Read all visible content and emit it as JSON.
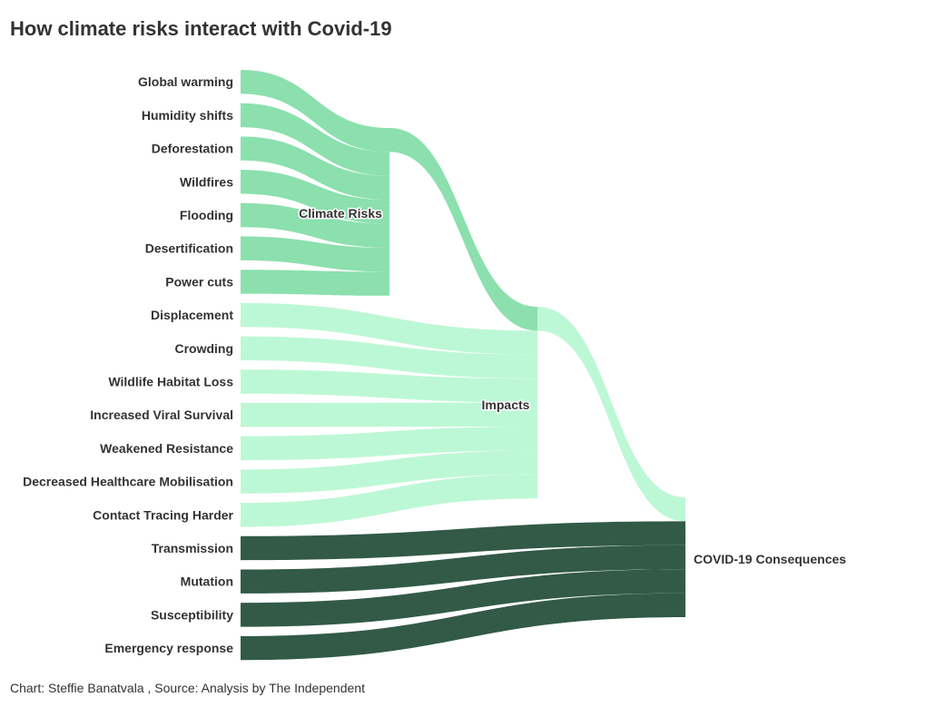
{
  "title": "How climate risks interact with Covid-19",
  "footer": "Chart: Steffie Banatvala , Source: Analysis by The Independent",
  "colors": {
    "climate_risk": "#8be0ae",
    "impact": "#bdf8d6",
    "consequence": "#325a47"
  },
  "chart_data": {
    "type": "sankey",
    "columns": [
      [
        "Global warming",
        "Humidity shifts",
        "Deforestation",
        "Wildfires",
        "Flooding",
        "Desertification",
        "Power cuts",
        "Displacement",
        "Crowding",
        "Wildlife Habitat Loss",
        "Increased Viral Survival",
        "Weakened Resistance",
        "Decreased Healthcare Mobilisation",
        "Contact Tracing Harder",
        "Transmission",
        "Mutation",
        "Susceptibility",
        "Emergency response"
      ],
      [
        "Climate Risks"
      ],
      [
        "Impacts"
      ],
      [
        "COVID-19 Consequences"
      ]
    ],
    "groups": {
      "Climate Risks": [
        "Global warming",
        "Humidity shifts",
        "Deforestation",
        "Wildfires",
        "Flooding",
        "Desertification",
        "Power cuts"
      ],
      "Impacts": [
        "Displacement",
        "Crowding",
        "Wildlife Habitat Loss",
        "Increased Viral Survival",
        "Weakened Resistance",
        "Decreased Healthcare Mobilisation",
        "Contact Tracing Harder"
      ],
      "COVID-19 Consequences": [
        "Transmission",
        "Mutation",
        "Susceptibility",
        "Emergency response"
      ]
    },
    "links": [
      {
        "source": "Global warming",
        "target": "Climate Risks",
        "value": 1
      },
      {
        "source": "Humidity shifts",
        "target": "Climate Risks",
        "value": 1
      },
      {
        "source": "Deforestation",
        "target": "Climate Risks",
        "value": 1
      },
      {
        "source": "Wildfires",
        "target": "Climate Risks",
        "value": 1
      },
      {
        "source": "Flooding",
        "target": "Climate Risks",
        "value": 1
      },
      {
        "source": "Desertification",
        "target": "Climate Risks",
        "value": 1
      },
      {
        "source": "Power cuts",
        "target": "Climate Risks",
        "value": 1
      },
      {
        "source": "Climate Risks",
        "target": "Impacts",
        "value": 1
      },
      {
        "source": "Displacement",
        "target": "Impacts",
        "value": 1
      },
      {
        "source": "Crowding",
        "target": "Impacts",
        "value": 1
      },
      {
        "source": "Wildlife Habitat Loss",
        "target": "Impacts",
        "value": 1
      },
      {
        "source": "Increased Viral Survival",
        "target": "Impacts",
        "value": 1
      },
      {
        "source": "Weakened Resistance",
        "target": "Impacts",
        "value": 1
      },
      {
        "source": "Decreased Healthcare Mobilisation",
        "target": "Impacts",
        "value": 1
      },
      {
        "source": "Contact Tracing Harder",
        "target": "Impacts",
        "value": 1
      },
      {
        "source": "Impacts",
        "target": "COVID-19 Consequences",
        "value": 1
      },
      {
        "source": "Transmission",
        "target": "COVID-19 Consequences",
        "value": 1
      },
      {
        "source": "Mutation",
        "target": "COVID-19 Consequences",
        "value": 1
      },
      {
        "source": "Susceptibility",
        "target": "COVID-19 Consequences",
        "value": 1
      },
      {
        "source": "Emergency response",
        "target": "COVID-19 Consequences",
        "value": 1
      }
    ]
  }
}
